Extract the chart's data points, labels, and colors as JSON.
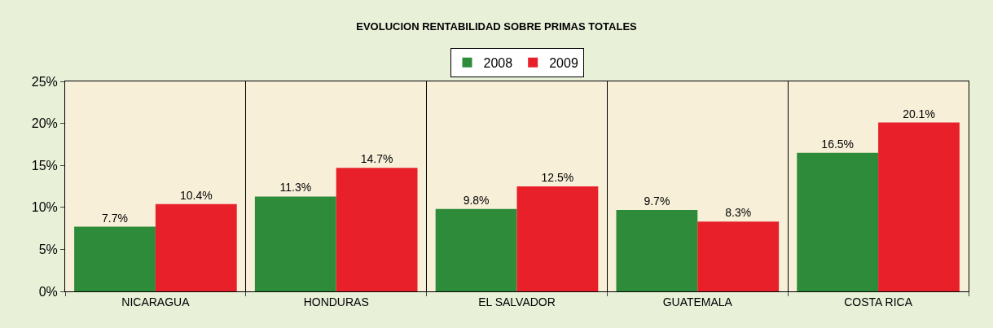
{
  "chart_data": {
    "type": "bar",
    "title": "EVOLUCION RENTABILIDAD SOBRE PRIMAS TOTALES",
    "categories": [
      "NICARAGUA",
      "HONDURAS",
      "EL SALVADOR",
      "GUATEMALA",
      "COSTA RICA"
    ],
    "series": [
      {
        "name": "2008",
        "color": "#2e8b3a",
        "values": [
          7.7,
          11.3,
          9.8,
          9.7,
          16.5
        ],
        "value_labels": [
          "7.7%",
          "11.3%",
          "9.8%",
          "9.7%",
          "16.5%"
        ]
      },
      {
        "name": "2009",
        "color": "#e8202a",
        "values": [
          10.4,
          14.7,
          12.5,
          8.3,
          20.1
        ],
        "value_labels": [
          "10.4%",
          "14.7%",
          "12.5%",
          "8.3%",
          "20.1%"
        ]
      }
    ],
    "ylim": [
      0,
      25
    ],
    "yticks": [
      {
        "value": 0,
        "label": "0%"
      },
      {
        "value": 5,
        "label": "5%"
      },
      {
        "value": 10,
        "label": "10%"
      },
      {
        "value": 15,
        "label": "15%"
      },
      {
        "value": 20,
        "label": "20%"
      },
      {
        "value": 25,
        "label": "25%"
      }
    ],
    "grid": "x",
    "legend": "top"
  }
}
